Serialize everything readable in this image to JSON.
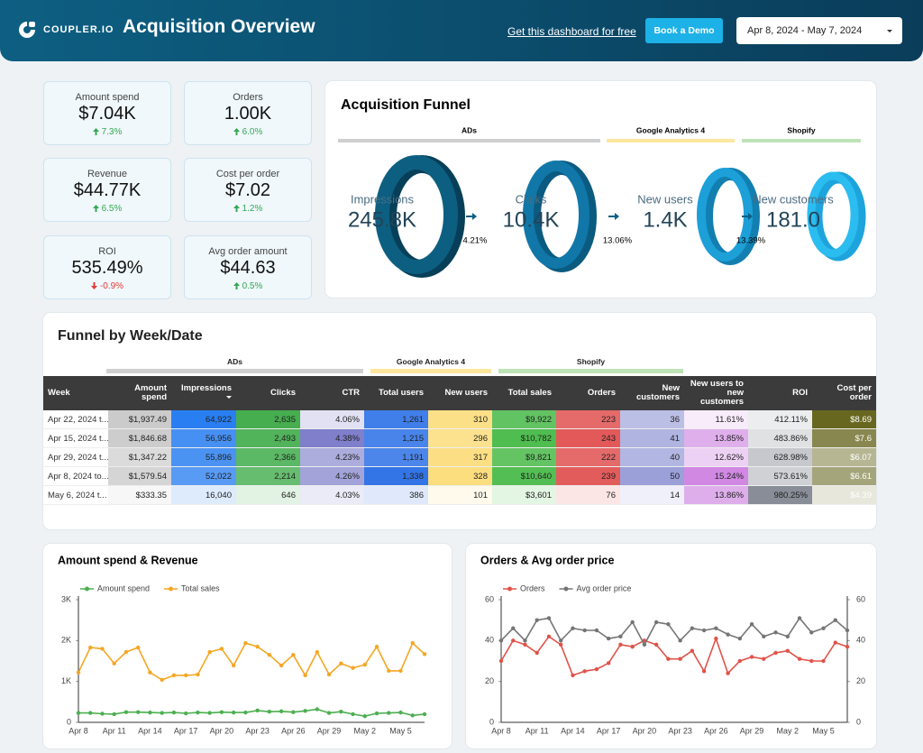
{
  "header": {
    "logo": "COUPLER.IO",
    "title": "Acquisition Overview",
    "link": "Get this dashboard for free",
    "button": "Book a Demo",
    "date_range": "Apr 8, 2024 - May 7, 2024"
  },
  "kpis": [
    {
      "label": "Amount spend",
      "value": "$7.04K",
      "change": "7.3%",
      "direction": "up"
    },
    {
      "label": "Orders",
      "value": "1.00K",
      "change": "6.0%",
      "direction": "up"
    },
    {
      "label": "Revenue",
      "value": "$44.77K",
      "change": "6.5%",
      "direction": "up"
    },
    {
      "label": "Cost per order",
      "value": "$7.02",
      "change": "1.2%",
      "direction": "up"
    },
    {
      "label": "ROI",
      "value": "535.49%",
      "change": "-0.9%",
      "direction": "down"
    },
    {
      "label": "Avg order amount",
      "value": "$44.63",
      "change": "0.5%",
      "direction": "up"
    }
  ],
  "funnel": {
    "title": "Acquisition Funnel",
    "groups": [
      "ADs",
      "Google Analytics 4",
      "Shopify"
    ],
    "stages": [
      {
        "label": "Impressions",
        "value": "245.8K"
      },
      {
        "label": "Clicks",
        "value": "10.4K"
      },
      {
        "label": "New users",
        "value": "1.4K"
      },
      {
        "label": "New customers",
        "value": "181.0"
      }
    ],
    "rates": [
      "4.21%",
      "13.06%",
      "13.39%"
    ]
  },
  "table": {
    "title": "Funnel by Week/Date",
    "groups": [
      "ADs",
      "Google Analytics 4",
      "Shopify"
    ],
    "columns": [
      "Week",
      "Amount spend",
      "Impressions",
      "Clicks",
      "CTR",
      "Total users",
      "New users",
      "Total sales",
      "Orders",
      "New customers",
      "New users to new customers",
      "ROI",
      "Cost per order"
    ],
    "rows": [
      [
        "Apr 22, 2024 t...",
        "$1,937.49",
        "64,922",
        "2,635",
        "4.06%",
        "1,261",
        "310",
        "$9,922",
        "223",
        "36",
        "11.61%",
        "412.11%",
        "$8.69"
      ],
      [
        "Apr 15, 2024 t...",
        "$1,846.68",
        "56,956",
        "2,493",
        "4.38%",
        "1,215",
        "296",
        "$10,782",
        "243",
        "41",
        "13.85%",
        "483.86%",
        "$7.6"
      ],
      [
        "Apr 29, 2024 t...",
        "$1,347.22",
        "55,896",
        "2,366",
        "4.23%",
        "1,191",
        "317",
        "$9,821",
        "222",
        "40",
        "12.62%",
        "628.98%",
        "$6.07"
      ],
      [
        "Apr 8, 2024 to...",
        "$1,579.54",
        "52,022",
        "2,214",
        "4.26%",
        "1,338",
        "328",
        "$10,640",
        "239",
        "50",
        "15.24%",
        "573.61%",
        "$6.61"
      ],
      [
        "May 6, 2024 t...",
        "$333.35",
        "16,040",
        "646",
        "4.03%",
        "386",
        "101",
        "$3,601",
        "76",
        "14",
        "13.86%",
        "980.25%",
        "$4.39"
      ]
    ]
  },
  "chart_data": [
    {
      "type": "line",
      "title": "Amount spend & Revenue",
      "categories": [
        "Apr 8",
        null,
        null,
        "Apr 11",
        null,
        null,
        "Apr 14",
        null,
        null,
        "Apr 17",
        null,
        null,
        "Apr 20",
        null,
        null,
        "Apr 23",
        null,
        null,
        "Apr 26",
        null,
        null,
        "Apr 29",
        null,
        null,
        "May 2",
        null,
        null,
        "May 5",
        null,
        null
      ],
      "series": [
        {
          "name": "Amount spend",
          "color": "#4caf50",
          "values": [
            230,
            230,
            210,
            200,
            250,
            250,
            240,
            230,
            240,
            220,
            240,
            230,
            250,
            240,
            240,
            290,
            260,
            270,
            250,
            280,
            320,
            230,
            260,
            200,
            150,
            220,
            230,
            240,
            170,
            200
          ]
        },
        {
          "name": "Total sales",
          "color": "#f5a623",
          "values": [
            1220,
            1830,
            1800,
            1440,
            1720,
            1830,
            1220,
            1040,
            1150,
            1150,
            1170,
            1720,
            1800,
            1390,
            1940,
            1850,
            1650,
            1390,
            1650,
            1150,
            1720,
            1170,
            1440,
            1330,
            1410,
            1850,
            1260,
            1260,
            1940,
            1670
          ]
        }
      ],
      "ylim": [
        0,
        3000
      ],
      "yticks": [
        0,
        {
          "value": 1000,
          "label": "1K"
        },
        {
          "value": 2000,
          "label": "2K"
        },
        {
          "value": 3000,
          "label": "3K"
        }
      ]
    },
    {
      "type": "line",
      "title": "Orders & Avg order price",
      "categories": [
        "Apr 8",
        null,
        null,
        "Apr 11",
        null,
        null,
        "Apr 14",
        null,
        null,
        "Apr 17",
        null,
        null,
        "Apr 20",
        null,
        null,
        "Apr 23",
        null,
        null,
        "Apr 26",
        null,
        null,
        "Apr 29",
        null,
        null,
        "May 2",
        null,
        null,
        "May 5",
        null,
        null
      ],
      "series": [
        {
          "name": "Orders",
          "color": "#e0534a",
          "values": [
            30,
            40,
            38,
            34,
            42,
            38,
            23,
            25,
            26,
            29,
            38,
            37,
            40,
            38,
            31,
            31,
            35,
            25,
            41,
            24,
            30,
            32,
            31,
            34,
            35,
            31,
            30,
            30,
            39,
            37
          ]
        },
        {
          "name": "Avg order price",
          "color": "#757575",
          "axis": "y2",
          "values": [
            40,
            46,
            40,
            50,
            51,
            40,
            46,
            45,
            45,
            41,
            42,
            49,
            38,
            49,
            48,
            40,
            46,
            45,
            46,
            43,
            41,
            48,
            42,
            44,
            42,
            51,
            44,
            46,
            50,
            45
          ]
        }
      ],
      "ylim": [
        0,
        60
      ],
      "yticks": [
        0,
        20,
        40,
        60
      ],
      "y2lim": [
        0,
        60
      ],
      "y2ticks": [
        0,
        20,
        40,
        60
      ]
    }
  ]
}
